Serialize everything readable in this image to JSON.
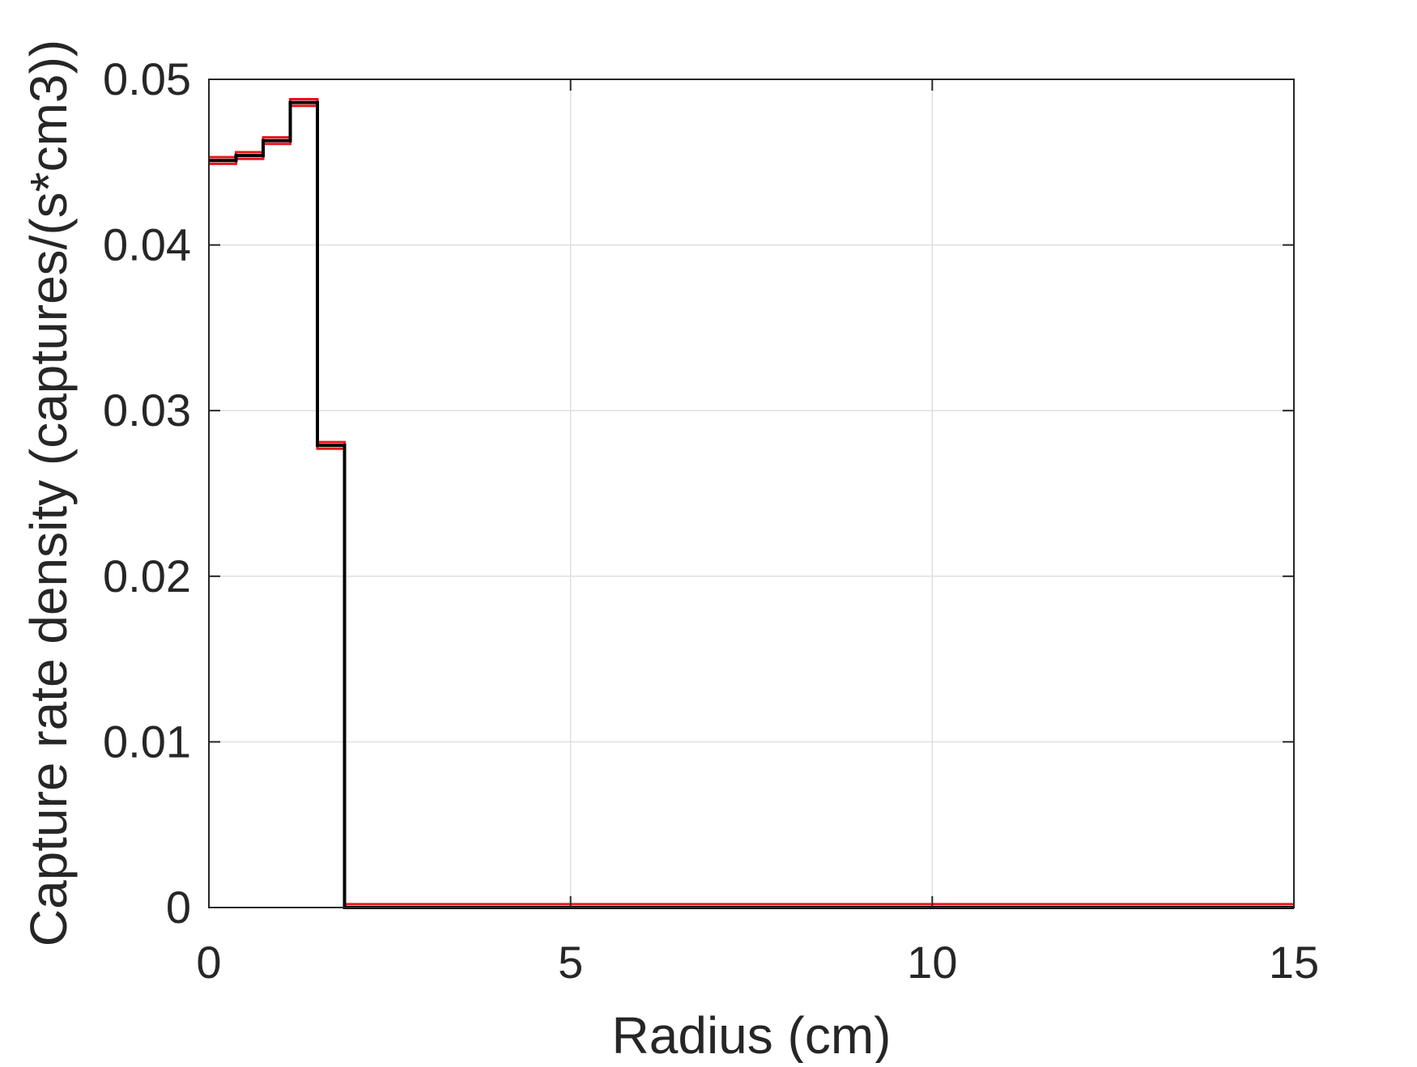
{
  "chart_data": {
    "type": "line",
    "step": true,
    "xlabel": "Radius (cm)",
    "ylabel": "Capture rate density (captures/(s*cm3))",
    "xlim": [
      0,
      15
    ],
    "ylim": [
      0,
      0.05
    ],
    "xticks": [
      0,
      5,
      10,
      15
    ],
    "xtick_labels": [
      "0",
      "5",
      "10",
      "15"
    ],
    "yticks": [
      0,
      0.01,
      0.02,
      0.03,
      0.04,
      0.05
    ],
    "ytick_labels": [
      "0",
      "0.01",
      "0.02",
      "0.03",
      "0.04",
      "0.05"
    ],
    "grid": true,
    "series": [
      {
        "color": "#000000",
        "bins": [
          {
            "x0": 0.0,
            "x1": 0.375,
            "y": 0.0451
          },
          {
            "x0": 0.375,
            "x1": 0.75,
            "y": 0.0454
          },
          {
            "x0": 0.75,
            "x1": 1.125,
            "y": 0.0463
          },
          {
            "x0": 1.125,
            "x1": 1.5,
            "y": 0.0486
          },
          {
            "x0": 1.5,
            "x1": 1.875,
            "y": 0.0279
          },
          {
            "x0": 1.875,
            "x1": 15.0,
            "y": 0.0
          }
        ]
      }
    ],
    "error_band_color": "#e8141c",
    "error_band_halfwidth": 0.0002
  }
}
